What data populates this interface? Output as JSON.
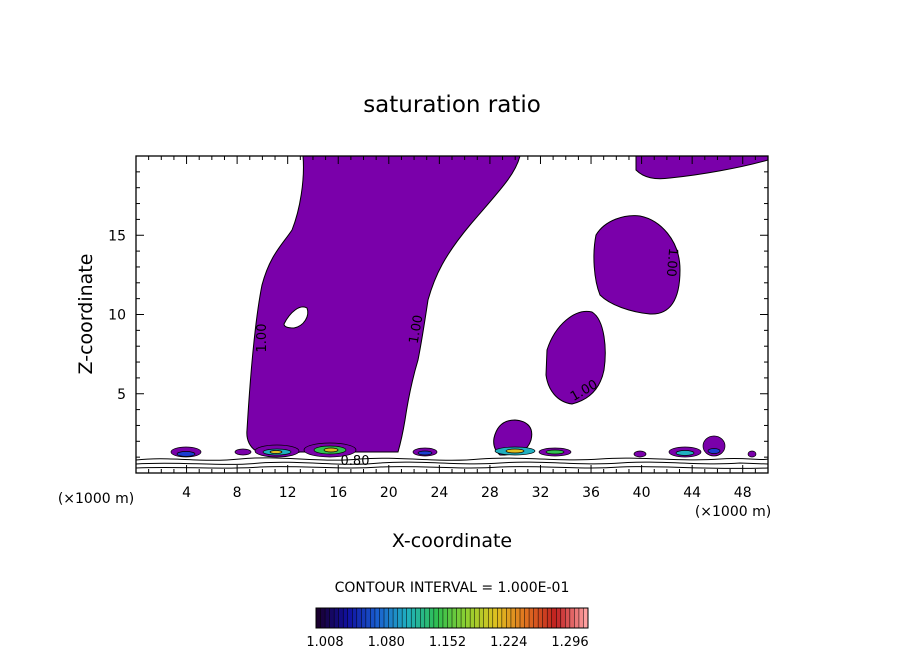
{
  "chart_data": {
    "type": "heatmap",
    "title": "saturation ratio",
    "xlabel": "X-coordinate",
    "ylabel": "Z-coordinate",
    "x_unit": "(×1000 m)",
    "y_unit": "(×1000 m)",
    "xlim": [
      0,
      50
    ],
    "ylim": [
      0,
      20
    ],
    "x_ticks": [
      "4",
      "8",
      "12",
      "16",
      "20",
      "24",
      "28",
      "32",
      "36",
      "40",
      "44",
      "48"
    ],
    "y_ticks": [
      "5",
      "10",
      "15"
    ],
    "contour_interval": "CONTOUR INTERVAL = 1.000E-01",
    "contour_labels": [
      "1.00",
      "1.00",
      "1.00",
      "1.00",
      "1.00",
      "0.80"
    ],
    "colorbar": {
      "ticks": [
        "1.008",
        "1.080",
        "1.152",
        "1.224",
        "1.296"
      ],
      "colors": [
        "#1a0030",
        "#1010a0",
        "#1a60d0",
        "#20b0c0",
        "#30c050",
        "#90d030",
        "#e0c020",
        "#e07020",
        "#c02020",
        "#ffa0a0"
      ]
    },
    "fill_color": "#7a00aa",
    "supersaturated_regions": [
      {
        "x_range": [
          9.5,
          35
        ],
        "z_range": [
          0.6,
          20
        ]
      },
      {
        "x_range": [
          36.5,
          43
        ],
        "z_range": [
          10.5,
          16.3
        ]
      },
      {
        "x_range": [
          32,
          37
        ],
        "z_range": [
          4.2,
          10.3
        ]
      },
      {
        "x_range": [
          28,
          31.5
        ],
        "z_range": [
          0.8,
          3.3
        ]
      },
      {
        "x_range": [
          40,
          50
        ],
        "z_range": [
          18.1,
          20
        ]
      }
    ]
  }
}
